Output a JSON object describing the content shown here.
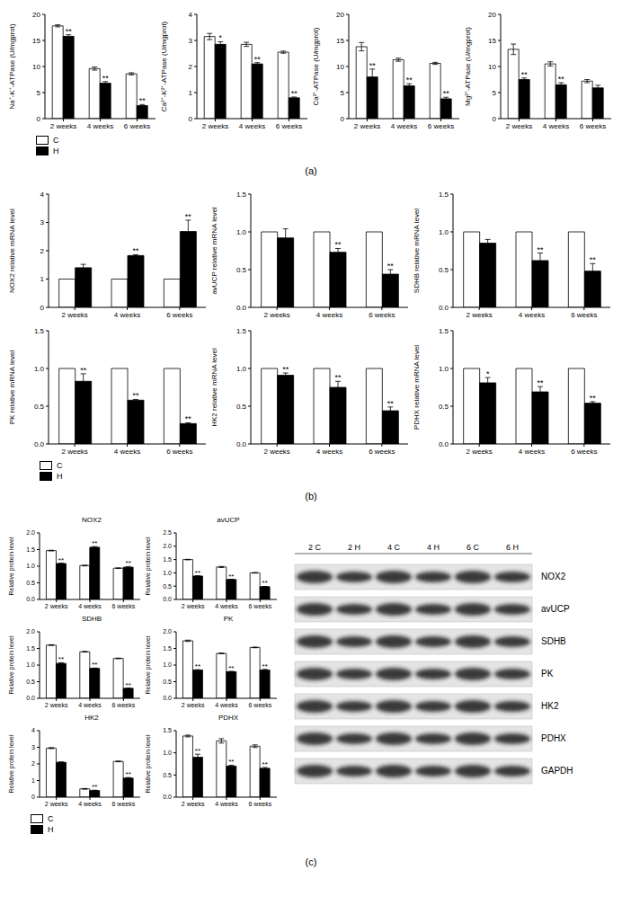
{
  "chart_data": [
    {
      "type": "bar",
      "y_label": "Na⁺-K⁺-ATPase (U/mgprot)",
      "categories": [
        "2 weeks",
        "4 weeks",
        "6 weeks"
      ],
      "series": [
        {
          "name": "C",
          "color": "#ffffff",
          "values": [
            17.8,
            9.6,
            8.6
          ],
          "errors": [
            0.2,
            0.3,
            0.2
          ]
        },
        {
          "name": "H",
          "color": "#000000",
          "values": [
            15.8,
            6.8,
            2.5
          ],
          "errors": [
            0.3,
            0.3,
            0.2
          ],
          "annotations": [
            "**",
            "**",
            "**"
          ]
        }
      ],
      "ylim": [
        0,
        20
      ],
      "yticks": [
        0,
        5,
        10,
        15,
        20
      ],
      "legend": "bottom"
    },
    {
      "type": "bar",
      "y_label": "Ca²⁺-K²⁺-ATPase (U/mgprot)",
      "categories": [
        "2 weeks",
        "4 weeks",
        "6 weeks"
      ],
      "series": [
        {
          "name": "C",
          "color": "#ffffff",
          "values": [
            3.15,
            2.85,
            2.55
          ],
          "errors": [
            0.12,
            0.08,
            0.04
          ]
        },
        {
          "name": "H",
          "color": "#000000",
          "values": [
            2.85,
            2.1,
            0.8
          ],
          "errors": [
            0.1,
            0.05,
            0.03
          ],
          "annotations": [
            "*",
            "**",
            "**"
          ]
        }
      ],
      "ylim": [
        0,
        4
      ],
      "yticks": [
        0,
        1,
        2,
        3,
        4
      ]
    },
    {
      "type": "bar",
      "y_label": "Ca²⁺-ATPase (U/mgprot)",
      "categories": [
        "2 weeks",
        "4 weeks",
        "6 weeks"
      ],
      "series": [
        {
          "name": "C",
          "color": "#ffffff",
          "values": [
            13.8,
            11.3,
            10.6
          ],
          "errors": [
            0.8,
            0.3,
            0.2
          ]
        },
        {
          "name": "H",
          "color": "#000000",
          "values": [
            8.0,
            6.3,
            3.8
          ],
          "errors": [
            1.5,
            0.4,
            0.3
          ],
          "annotations": [
            "**",
            "**",
            "**"
          ]
        }
      ],
      "ylim": [
        0,
        20
      ],
      "yticks": [
        0,
        5,
        10,
        15,
        20
      ]
    },
    {
      "type": "bar",
      "y_label": "Mg²⁺-ATPase (U/mgprot)",
      "categories": [
        "2 weeks",
        "4 weeks",
        "6 weeks"
      ],
      "series": [
        {
          "name": "C",
          "color": "#ffffff",
          "values": [
            13.3,
            10.5,
            7.2
          ],
          "errors": [
            1.0,
            0.4,
            0.3
          ]
        },
        {
          "name": "H",
          "color": "#000000",
          "values": [
            7.5,
            6.5,
            5.9
          ],
          "errors": [
            0.3,
            0.4,
            0.5
          ],
          "annotations": [
            "**",
            "**",
            null
          ]
        }
      ],
      "ylim": [
        0,
        20
      ],
      "yticks": [
        0,
        5,
        10,
        15,
        20
      ]
    },
    {
      "type": "bar",
      "y_label": "NOX2 relative mRNA level",
      "categories": [
        "2 weeks",
        "4 weeks",
        "6 weeks"
      ],
      "series": [
        {
          "name": "C",
          "color": "#ffffff",
          "values": [
            1,
            1,
            1
          ],
          "errors": [
            0,
            0,
            0
          ]
        },
        {
          "name": "H",
          "color": "#000000",
          "values": [
            1.4,
            1.83,
            2.68
          ],
          "errors": [
            0.12,
            0.03,
            0.4
          ],
          "annotations": [
            null,
            "**",
            "**"
          ]
        }
      ],
      "ylim": [
        0,
        4
      ],
      "yticks": [
        0,
        1,
        2,
        3,
        4
      ]
    },
    {
      "type": "bar",
      "y_label": "avUCP relative mRNA level",
      "categories": [
        "2 weeks",
        "4 weeks",
        "6 weeks"
      ],
      "series": [
        {
          "name": "C",
          "color": "#ffffff",
          "values": [
            1,
            1,
            1
          ],
          "errors": [
            0,
            0,
            0
          ]
        },
        {
          "name": "H",
          "color": "#000000",
          "values": [
            0.92,
            0.73,
            0.44
          ],
          "errors": [
            0.12,
            0.05,
            0.06
          ],
          "annotations": [
            null,
            "**",
            "**"
          ]
        }
      ],
      "ylim": [
        0,
        1.5
      ],
      "yticks": [
        {
          "value": 0,
          "label": "0.0"
        },
        {
          "value": 0.5,
          "label": "0.5"
        },
        {
          "value": 1,
          "label": "1.0"
        },
        {
          "value": 1.5,
          "label": "1.5"
        }
      ]
    },
    {
      "type": "bar",
      "y_label": "SDHB relative mRNA level",
      "categories": [
        "2 weeks",
        "4 weeks",
        "6 weeks"
      ],
      "series": [
        {
          "name": "C",
          "color": "#ffffff",
          "values": [
            1,
            1,
            1
          ],
          "errors": [
            0,
            0,
            0
          ]
        },
        {
          "name": "H",
          "color": "#000000",
          "values": [
            0.85,
            0.62,
            0.48
          ],
          "errors": [
            0.05,
            0.1,
            0.1
          ],
          "annotations": [
            null,
            "**",
            "**"
          ]
        }
      ],
      "ylim": [
        0,
        1.5
      ],
      "yticks": [
        {
          "value": 0,
          "label": "0.0"
        },
        {
          "value": 0.5,
          "label": "0.5"
        },
        {
          "value": 1,
          "label": "1.0"
        },
        {
          "value": 1.5,
          "label": "1.5"
        }
      ]
    },
    {
      "type": "bar",
      "y_label": "PK relative mRNA level",
      "categories": [
        "2 weeks",
        "4 weeks",
        "6 weeks"
      ],
      "series": [
        {
          "name": "C",
          "color": "#ffffff",
          "values": [
            1,
            1,
            1
          ],
          "errors": [
            0,
            0,
            0
          ]
        },
        {
          "name": "H",
          "color": "#000000",
          "values": [
            0.83,
            0.58,
            0.27
          ],
          "errors": [
            0.1,
            0.01,
            0.01
          ],
          "annotations": [
            "**",
            "**",
            "**"
          ]
        }
      ],
      "ylim": [
        0,
        1.5
      ],
      "yticks": [
        {
          "value": 0,
          "label": "0.0"
        },
        {
          "value": 0.5,
          "label": "0.5"
        },
        {
          "value": 1,
          "label": "1.0"
        },
        {
          "value": 1.5,
          "label": "1.5"
        }
      ],
      "legend": "bottom"
    },
    {
      "type": "bar",
      "y_label": "HK2 relative mRNA level",
      "categories": [
        "2 weeks",
        "4 weeks",
        "6 weeks"
      ],
      "series": [
        {
          "name": "C",
          "color": "#ffffff",
          "values": [
            1,
            1,
            1
          ],
          "errors": [
            0,
            0,
            0
          ]
        },
        {
          "name": "H",
          "color": "#000000",
          "values": [
            0.91,
            0.75,
            0.44
          ],
          "errors": [
            0.03,
            0.08,
            0.05
          ],
          "annotations": [
            "**",
            "**",
            "**"
          ]
        }
      ],
      "ylim": [
        0,
        1.5
      ],
      "yticks": [
        {
          "value": 0,
          "label": "0.0"
        },
        {
          "value": 0.5,
          "label": "0.5"
        },
        {
          "value": 1,
          "label": "1.0"
        },
        {
          "value": 1.5,
          "label": "1.5"
        }
      ]
    },
    {
      "type": "bar",
      "y_label": "PDHX relative mRNA level",
      "categories": [
        "2 weeks",
        "4 weeks",
        "6 weeks"
      ],
      "series": [
        {
          "name": "C",
          "color": "#ffffff",
          "values": [
            1,
            1,
            1
          ],
          "errors": [
            0,
            0,
            0
          ]
        },
        {
          "name": "H",
          "color": "#000000",
          "values": [
            0.81,
            0.69,
            0.54
          ],
          "errors": [
            0.07,
            0.07,
            0.02
          ],
          "annotations": [
            "*",
            "**",
            "**"
          ]
        }
      ],
      "ylim": [
        0,
        1.5
      ],
      "yticks": [
        {
          "value": 0,
          "label": "0.0"
        },
        {
          "value": 0.5,
          "label": "0.5"
        },
        {
          "value": 1,
          "label": "1.0"
        },
        {
          "value": 1.5,
          "label": "1.5"
        }
      ]
    },
    {
      "type": "bar",
      "title": "NOX2",
      "y_label": "Relative protein level",
      "categories": [
        "2 weeks",
        "4 weeks",
        "6 weeks"
      ],
      "series": [
        {
          "name": "C",
          "color": "#ffffff",
          "values": [
            1.47,
            1.02,
            0.94
          ],
          "errors": [
            0.01,
            0.01,
            0.01
          ]
        },
        {
          "name": "H",
          "color": "#000000",
          "values": [
            1.08,
            1.57,
            0.97
          ],
          "errors": [
            0.01,
            0.02,
            0.02
          ],
          "annotations": [
            "**",
            "**",
            "**"
          ]
        }
      ],
      "ylim": [
        0,
        2
      ],
      "yticks": [
        {
          "value": 0,
          "label": "0.0"
        },
        {
          "value": 0.5,
          "label": "0.5"
        },
        {
          "value": 1,
          "label": "1.0"
        },
        {
          "value": 1.5,
          "label": "1.5"
        },
        {
          "value": 2,
          "label": "2.0"
        }
      ]
    },
    {
      "type": "bar",
      "title": "avUCP",
      "y_label": "Relative protein level",
      "categories": [
        "2 weeks",
        "4 weeks",
        "6 weeks"
      ],
      "series": [
        {
          "name": "C",
          "color": "#ffffff",
          "values": [
            1.5,
            1.22,
            1.0
          ],
          "errors": [
            0.01,
            0.02,
            0.01
          ]
        },
        {
          "name": "H",
          "color": "#000000",
          "values": [
            0.88,
            0.75,
            0.48
          ],
          "errors": [
            0.01,
            0.01,
            0.01
          ],
          "annotations": [
            "**",
            "**",
            "**"
          ]
        }
      ],
      "ylim": [
        0,
        2.5
      ],
      "yticks": [
        {
          "value": 0,
          "label": "0.0"
        },
        {
          "value": 0.5,
          "label": "0.5"
        },
        {
          "value": 1,
          "label": "1.0"
        },
        {
          "value": 1.5,
          "label": "1.5"
        },
        {
          "value": 2,
          "label": "2.0"
        },
        {
          "value": 2.5,
          "label": "2.5"
        }
      ]
    },
    {
      "type": "bar",
      "title": "SDHB",
      "y_label": "Relative protein level",
      "categories": [
        "2 weeks",
        "4 weeks",
        "6 weeks"
      ],
      "series": [
        {
          "name": "C",
          "color": "#ffffff",
          "values": [
            1.6,
            1.4,
            1.2
          ],
          "errors": [
            0.01,
            0.01,
            0.01
          ]
        },
        {
          "name": "H",
          "color": "#000000",
          "values": [
            1.05,
            0.9,
            0.3
          ],
          "errors": [
            0.02,
            0.01,
            0.01
          ],
          "annotations": [
            "**",
            "**",
            "**"
          ]
        }
      ],
      "ylim": [
        0,
        2
      ],
      "yticks": [
        {
          "value": 0,
          "label": "0.0"
        },
        {
          "value": 0.5,
          "label": "0.5"
        },
        {
          "value": 1,
          "label": "1.0"
        },
        {
          "value": 1.5,
          "label": "1.5"
        },
        {
          "value": 2,
          "label": "2.0"
        }
      ]
    },
    {
      "type": "bar",
      "title": "PK",
      "y_label": "Relative protein level",
      "categories": [
        "2 weeks",
        "4 weeks",
        "6 weeks"
      ],
      "series": [
        {
          "name": "C",
          "color": "#ffffff",
          "values": [
            1.73,
            1.35,
            1.53
          ],
          "errors": [
            0.02,
            0.01,
            0.01
          ]
        },
        {
          "name": "H",
          "color": "#000000",
          "values": [
            0.85,
            0.8,
            0.85
          ],
          "errors": [
            0.01,
            0.01,
            0.02
          ],
          "annotations": [
            "**",
            "**",
            "**"
          ]
        }
      ],
      "ylim": [
        0,
        2
      ],
      "yticks": [
        {
          "value": 0,
          "label": "0.0"
        },
        {
          "value": 0.5,
          "label": "0.5"
        },
        {
          "value": 1,
          "label": "1.0"
        },
        {
          "value": 1.5,
          "label": "1.5"
        },
        {
          "value": 2,
          "label": "2.0"
        }
      ]
    },
    {
      "type": "bar",
      "title": "HK2",
      "y_label": "Relative protein level",
      "categories": [
        "2 weeks",
        "4 weeks",
        "6 weeks"
      ],
      "series": [
        {
          "name": "C",
          "color": "#ffffff",
          "values": [
            2.95,
            0.5,
            2.15
          ],
          "errors": [
            0.03,
            0.02,
            0.02
          ]
        },
        {
          "name": "H",
          "color": "#000000",
          "values": [
            2.1,
            0.4,
            1.15
          ],
          "errors": [
            0.02,
            0.02,
            0.03
          ],
          "annotations": [
            null,
            "**",
            "**"
          ]
        }
      ],
      "ylim": [
        0,
        4
      ],
      "yticks": [
        0,
        1,
        2,
        3,
        4
      ],
      "legend": "bottom"
    },
    {
      "type": "bar",
      "title": "PDHX",
      "y_label": "Relative protein level",
      "categories": [
        "2 weeks",
        "4 weeks",
        "6 weeks"
      ],
      "series": [
        {
          "name": "C",
          "color": "#ffffff",
          "values": [
            1.38,
            1.27,
            1.15
          ],
          "errors": [
            0.02,
            0.05,
            0.03
          ]
        },
        {
          "name": "H",
          "color": "#000000",
          "values": [
            0.9,
            0.7,
            0.65
          ],
          "errors": [
            0.07,
            0.02,
            0.02
          ],
          "annotations": [
            "**",
            "**",
            "**"
          ]
        }
      ],
      "ylim": [
        0,
        1.5
      ],
      "yticks": [
        {
          "value": 0,
          "label": "0.0"
        },
        {
          "value": 0.5,
          "label": "0.5"
        },
        {
          "value": 1,
          "label": "1.0"
        },
        {
          "value": 1.5,
          "label": "1.5"
        }
      ]
    }
  ],
  "panels": [
    "(a)",
    "(b)",
    "(c)"
  ],
  "western_blot": {
    "lanes": [
      "2 C",
      "2 H",
      "4 C",
      "4 H",
      "6 C",
      "6 H"
    ],
    "proteins": [
      "NOX2",
      "avUCP",
      "SDHB",
      "PK",
      "HK2",
      "PDHX",
      "GAPDH"
    ]
  }
}
